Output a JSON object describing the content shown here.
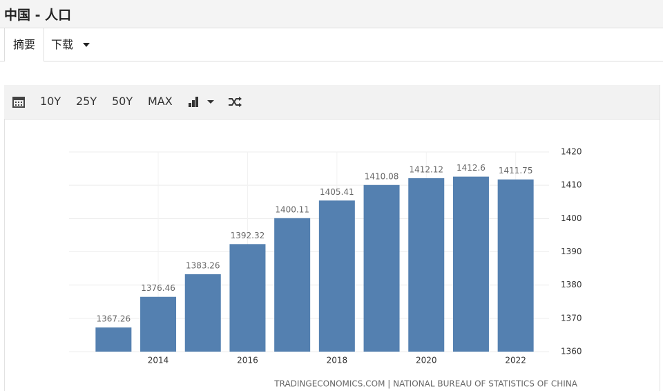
{
  "header": {
    "title": "中国 - 人口"
  },
  "tabs": [
    "摘要",
    "下载"
  ],
  "toolbar": {
    "buttons": [
      "10Y",
      "25Y",
      "50Y",
      "MAX"
    ]
  },
  "chart_data": {
    "type": "bar",
    "categories": [
      null,
      "2014",
      null,
      "2016",
      null,
      "2018",
      null,
      "2020",
      null,
      "2022"
    ],
    "values": [
      1367.26,
      1376.46,
      1383.26,
      1392.32,
      1400.11,
      1405.41,
      1410.08,
      1412.12,
      1412.6,
      1411.75
    ],
    "color": "#5480b0",
    "ylim": [
      1360,
      1420
    ],
    "yticks": [
      1360,
      1370,
      1380,
      1390,
      1400,
      1410,
      1420
    ],
    "grid": true,
    "y_axis_side": "right",
    "source": "TRADINGECONOMICS.COM | NATIONAL BUREAU OF STATISTICS OF CHINA"
  }
}
